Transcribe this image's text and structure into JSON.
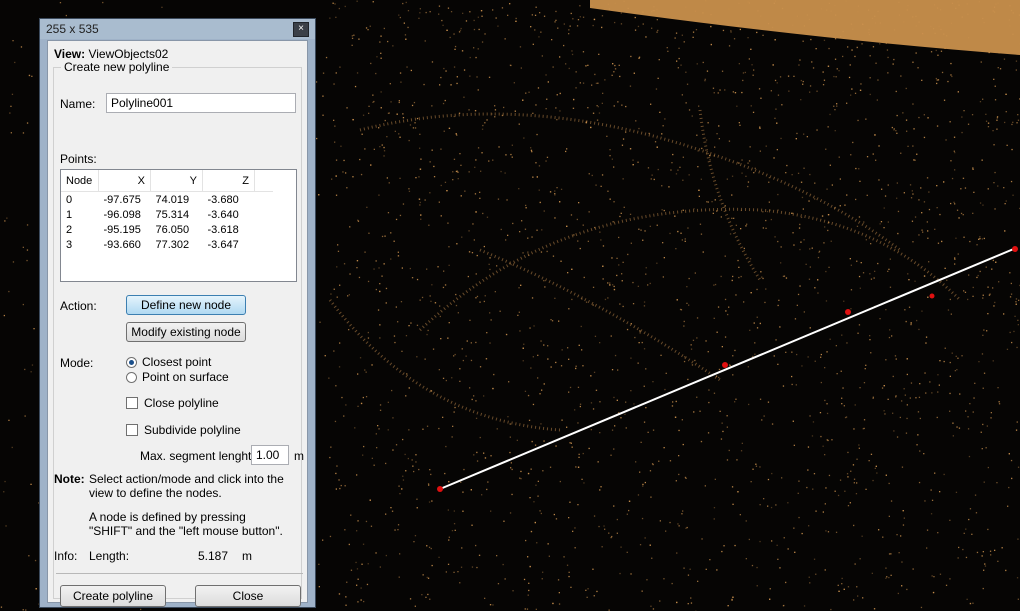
{
  "window": {
    "title": "255 x 535",
    "close_symbol": "×"
  },
  "view": {
    "label": "View:",
    "name": "ViewObjects02"
  },
  "group": {
    "legend": "Create new polyline"
  },
  "name_field": {
    "label": "Name:",
    "value": "Polyline001"
  },
  "points": {
    "label": "Points:",
    "columns": [
      "Node",
      "X",
      "Y",
      "Z"
    ],
    "rows": [
      [
        "0",
        "-97.675",
        "74.019",
        "-3.680"
      ],
      [
        "1",
        "-96.098",
        "75.314",
        "-3.640"
      ],
      [
        "2",
        "-95.195",
        "76.050",
        "-3.618"
      ],
      [
        "3",
        "-93.660",
        "77.302",
        "-3.647"
      ]
    ]
  },
  "action": {
    "label": "Action:",
    "define_label": "Define new node",
    "modify_label": "Modify existing node"
  },
  "mode": {
    "label": "Mode:",
    "closest_label": "Closest point",
    "surface_label": "Point on surface",
    "selected": "closest"
  },
  "options": {
    "close_label": "Close polyline",
    "close_checked": false,
    "subdivide_label": "Subdivide polyline",
    "subdivide_checked": false,
    "max_segment_label": "Max. segment lenght:",
    "max_segment_value": "1.00",
    "max_segment_unit": "m"
  },
  "note": {
    "label": "Note:",
    "line1": "Select action/mode and click into the",
    "line2": "view to define the nodes.",
    "line3": "A node is defined by pressing",
    "line4": "\"SHIFT\" and the \"left mouse button\"."
  },
  "info": {
    "label": "Info:",
    "length_label": "Length:",
    "length_value": "5.187",
    "length_unit": "m"
  },
  "buttons": {
    "create_label": "Create polyline",
    "close_label": "Close"
  },
  "colors": {
    "point_cloud": "#c9904d",
    "sky": "#e0a155",
    "polyline": "#ffffff",
    "node": "#e01010",
    "dialog_frame": "#9fb2c8"
  }
}
